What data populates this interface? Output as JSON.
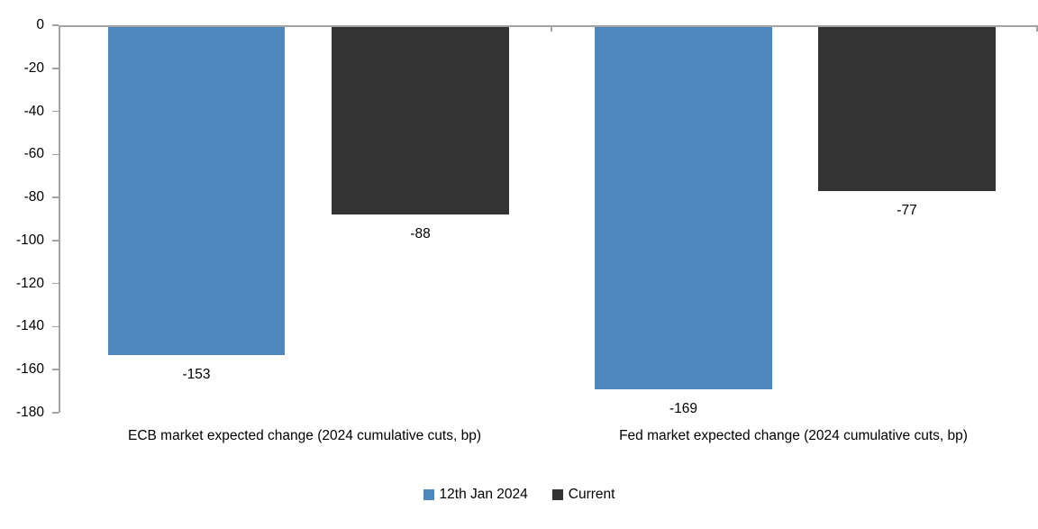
{
  "chart_data": {
    "type": "bar",
    "title": "",
    "categories": [
      "ECB market expected change (2024 cumulative cuts, bp)",
      "Fed market expected change (2024 cumulative cuts, bp)"
    ],
    "series": [
      {
        "name": "12th Jan 2024",
        "color": "#4E87BC",
        "values": [
          -153,
          -169
        ]
      },
      {
        "name": "Current",
        "color": "#333333",
        "values": [
          -88,
          -77
        ]
      }
    ],
    "data_labels": [
      [
        "-153",
        "-169"
      ],
      [
        "-88",
        "-77"
      ]
    ],
    "ylim": [
      -180,
      0
    ],
    "yticks": [
      0,
      -20,
      -40,
      -60,
      -80,
      -100,
      -120,
      -140,
      -160,
      -180
    ],
    "xlabel": "",
    "ylabel": "",
    "grid": false,
    "legend_position": "bottom-center",
    "axis_color": "#A3A3A3",
    "text_color": "#000000",
    "background_color": "#FFFFFF"
  }
}
